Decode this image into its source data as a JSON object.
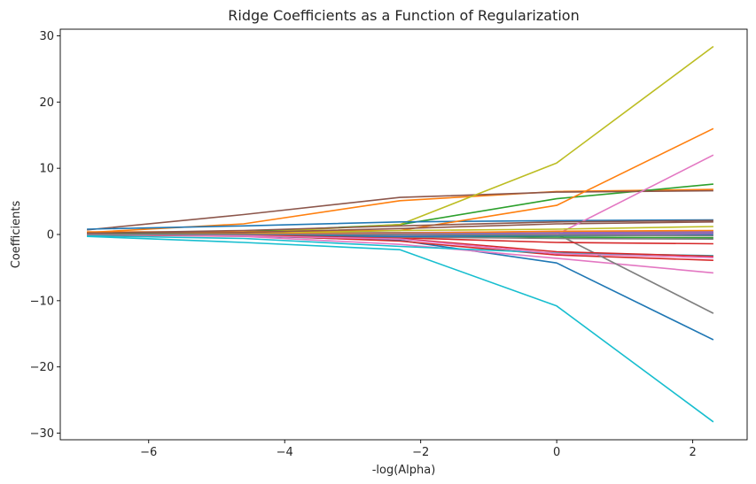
{
  "chart_data": {
    "type": "line",
    "title": "Ridge Coefficients as a Function of Regularization",
    "xlabel": "-log(Alpha)",
    "ylabel": "Coefficients",
    "xlim": [
      -7.3,
      2.8
    ],
    "ylim": [
      -31,
      31
    ],
    "xticks": [
      -6,
      -4,
      -2,
      0,
      2
    ],
    "yticks": [
      -30,
      -20,
      -10,
      0,
      10,
      20,
      30
    ],
    "grid": false,
    "legend": "none",
    "x": [
      -6.908,
      -4.605,
      -2.303,
      0.0,
      2.303
    ],
    "series": [
      {
        "color": "#1f77b4",
        "values": [
          0.3,
          -0.2,
          -0.9,
          -4.3,
          -15.9
        ]
      },
      {
        "color": "#ff7f0e",
        "values": [
          0.3,
          1.6,
          5.1,
          6.5,
          6.8
        ]
      },
      {
        "color": "#2ca02c",
        "values": [
          0.2,
          0.4,
          1.5,
          5.4,
          7.6
        ]
      },
      {
        "color": "#d62728",
        "values": [
          0.1,
          -0.1,
          -1.0,
          -3.1,
          -3.9
        ]
      },
      {
        "color": "#9467bd",
        "values": [
          0.2,
          0.2,
          0.3,
          0.4,
          0.5
        ]
      },
      {
        "color": "#8c564b",
        "values": [
          0.7,
          3.0,
          5.6,
          6.4,
          6.6
        ]
      },
      {
        "color": "#e377c2",
        "values": [
          0.0,
          -0.3,
          -1.5,
          -3.6,
          -5.8
        ]
      },
      {
        "color": "#7f7f7f",
        "values": [
          0.1,
          0.1,
          0.3,
          0.1,
          -11.9
        ]
      },
      {
        "color": "#bcbd22",
        "values": [
          0.0,
          0.2,
          1.5,
          10.8,
          28.4
        ]
      },
      {
        "color": "#17becf",
        "values": [
          -0.3,
          -1.2,
          -2.3,
          -10.8,
          -28.3
        ]
      },
      {
        "color": "#1f77b4",
        "values": [
          0.8,
          1.3,
          1.9,
          2.1,
          2.2
        ]
      },
      {
        "color": "#ff7f0e",
        "values": [
          0.4,
          0.4,
          0.6,
          4.4,
          16.0
        ]
      },
      {
        "color": "#2ca02c",
        "values": [
          0.1,
          0.0,
          -0.2,
          -0.4,
          -0.5
        ]
      },
      {
        "color": "#d62728",
        "values": [
          -0.1,
          -0.2,
          -0.5,
          -1.2,
          -1.4
        ]
      },
      {
        "color": "#9467bd",
        "values": [
          0.1,
          0.0,
          0.1,
          0.0,
          0.1
        ]
      },
      {
        "color": "#8c564b",
        "values": [
          0.2,
          0.3,
          0.9,
          1.6,
          1.9
        ]
      },
      {
        "color": "#e377c2",
        "values": [
          0.0,
          0.0,
          -0.2,
          0.0,
          12.0
        ]
      },
      {
        "color": "#7f7f7f",
        "values": [
          0.0,
          -0.2,
          -0.4,
          -0.6,
          -0.7
        ]
      },
      {
        "color": "#bcbd22",
        "values": [
          0.0,
          0.1,
          0.6,
          0.8,
          1.2
        ]
      },
      {
        "color": "#17becf",
        "values": [
          -0.2,
          -0.6,
          -1.8,
          -2.8,
          -3.2
        ]
      },
      {
        "color": "#1f77b4",
        "values": [
          0.1,
          -0.1,
          -0.3,
          -0.2,
          -0.1
        ]
      },
      {
        "color": "#ff7f0e",
        "values": [
          0.0,
          0.1,
          0.2,
          0.5,
          0.6
        ]
      },
      {
        "color": "#2ca02c",
        "values": [
          0.1,
          0.0,
          0.0,
          0.2,
          0.3
        ]
      },
      {
        "color": "#d62728",
        "values": [
          0.0,
          -0.1,
          -0.6,
          -2.6,
          -3.3
        ]
      },
      {
        "color": "#9467bd",
        "values": [
          0.0,
          0.0,
          0.1,
          0.2,
          0.3
        ]
      },
      {
        "color": "#8c564b",
        "values": [
          0.2,
          0.6,
          1.3,
          1.9,
          2.1
        ]
      },
      {
        "color": "#e377c2",
        "values": [
          0.0,
          -0.2,
          -0.7,
          -2.9,
          -3.5
        ]
      },
      {
        "color": "#7f7f7f",
        "values": [
          0.0,
          0.0,
          0.0,
          -0.1,
          -0.2
        ]
      }
    ]
  }
}
